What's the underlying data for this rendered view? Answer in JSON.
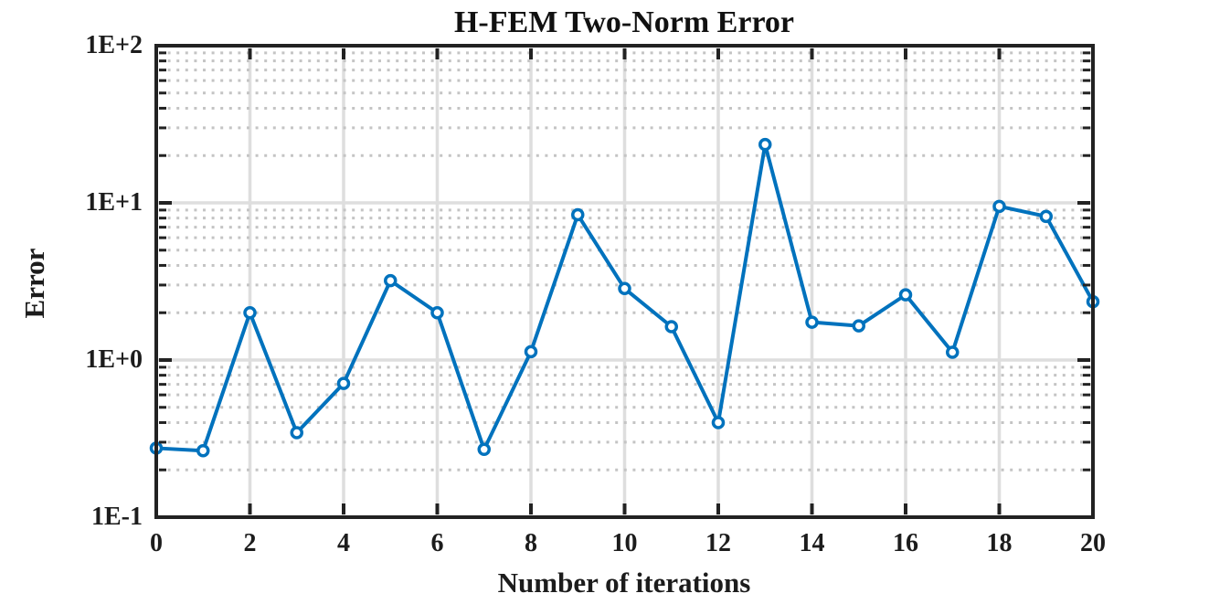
{
  "figure": {
    "background": "#ffffff"
  },
  "chart_data": {
    "type": "line",
    "title": "H-FEM Two-Norm Error",
    "xlabel": "Number of iterations",
    "ylabel": "Error",
    "yscale": "log",
    "xlim": [
      0,
      20
    ],
    "ylim": [
      0.1,
      100
    ],
    "x_ticks": [
      0,
      2,
      4,
      6,
      8,
      10,
      12,
      14,
      16,
      18,
      20
    ],
    "x_tick_labels": [
      "0",
      "2",
      "4",
      "6",
      "8",
      "10",
      "12",
      "14",
      "16",
      "18",
      "20"
    ],
    "y_ticks": [
      0.1,
      1,
      10,
      100
    ],
    "y_tick_labels": [
      "1E-1",
      "1E+0",
      "1E+1",
      "1E+2"
    ],
    "grid": {
      "major": true,
      "minor_horizontal_dotted": true,
      "legend": "none"
    },
    "series": [
      {
        "name": "H-FEM two-norm error",
        "marker": "open-circle",
        "x": [
          0,
          1,
          2,
          3,
          4,
          5,
          6,
          7,
          8,
          9,
          10,
          11,
          12,
          13,
          14,
          15,
          16,
          17,
          18,
          19,
          20
        ],
        "y": [
          0.275,
          0.265,
          2.0,
          0.345,
          0.71,
          3.2,
          2.0,
          0.27,
          1.13,
          8.4,
          2.85,
          1.63,
          0.4,
          23.5,
          1.74,
          1.65,
          2.6,
          1.12,
          9.5,
          8.2,
          2.35
        ]
      }
    ],
    "colors": {
      "line": "#0072BD",
      "marker_fill": "#ffffff",
      "axis": "#222222",
      "grid_major": "#dedede",
      "grid_minor": "#c4c4c4",
      "text": "#1c1c1c",
      "background": "#ffffff"
    }
  }
}
